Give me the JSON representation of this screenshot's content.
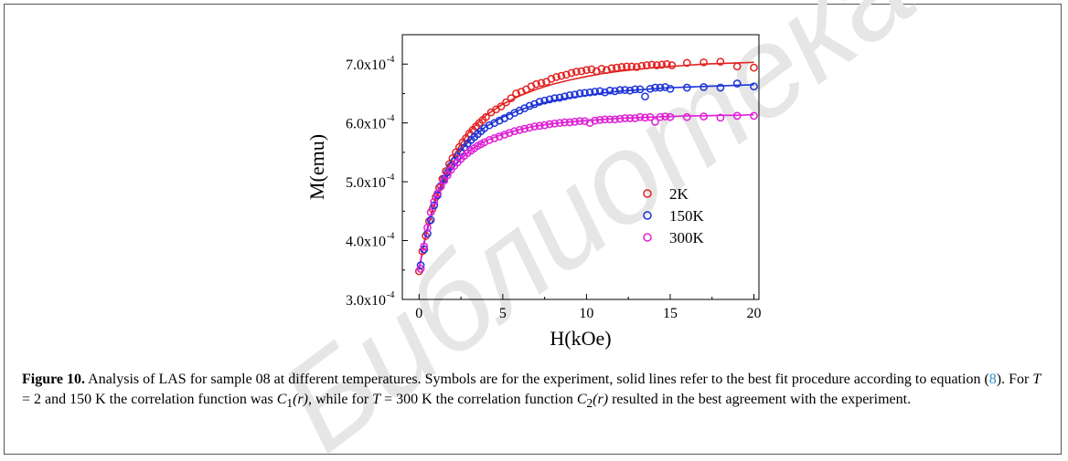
{
  "chart_data": {
    "type": "scatter",
    "xlabel": "H(kOe)",
    "ylabel": "M(emu)",
    "xlim": [
      -1,
      20.3
    ],
    "ylim": [
      0.0003,
      0.00075
    ],
    "xticks": [
      "0",
      "5",
      "10",
      "15",
      "20"
    ],
    "yticks": [
      "3.0x10",
      "4.0x10",
      "5.0x10",
      "6.0x10",
      "7.0x10"
    ],
    "ytick_exponent": "-4",
    "legend_position": "center-right",
    "grid": false,
    "series": [
      {
        "name": "2K",
        "color": "#e32222",
        "points": [
          [
            0.0,
            3.48
          ],
          [
            0.2,
            3.82
          ],
          [
            0.4,
            4.08
          ],
          [
            0.6,
            4.33
          ],
          [
            0.8,
            4.54
          ],
          [
            1.0,
            4.74
          ],
          [
            1.2,
            4.9
          ],
          [
            1.4,
            5.05
          ],
          [
            1.6,
            5.18
          ],
          [
            1.8,
            5.3
          ],
          [
            2.0,
            5.4
          ],
          [
            2.2,
            5.5
          ],
          [
            2.4,
            5.59
          ],
          [
            2.6,
            5.67
          ],
          [
            2.8,
            5.74
          ],
          [
            3.0,
            5.82
          ],
          [
            3.2,
            5.88
          ],
          [
            3.4,
            5.94
          ],
          [
            3.6,
            6.0
          ],
          [
            3.8,
            6.05
          ],
          [
            4.0,
            6.1
          ],
          [
            4.3,
            6.18
          ],
          [
            4.6,
            6.23
          ],
          [
            4.9,
            6.28
          ],
          [
            5.2,
            6.35
          ],
          [
            5.5,
            6.42
          ],
          [
            5.8,
            6.5
          ],
          [
            6.1,
            6.53
          ],
          [
            6.4,
            6.57
          ],
          [
            6.7,
            6.62
          ],
          [
            7.0,
            6.66
          ],
          [
            7.3,
            6.68
          ],
          [
            7.6,
            6.7
          ],
          [
            7.9,
            6.75
          ],
          [
            8.2,
            6.78
          ],
          [
            8.5,
            6.8
          ],
          [
            8.8,
            6.82
          ],
          [
            9.1,
            6.85
          ],
          [
            9.4,
            6.87
          ],
          [
            9.7,
            6.88
          ],
          [
            10.0,
            6.9
          ],
          [
            10.3,
            6.91
          ],
          [
            10.6,
            6.88
          ],
          [
            10.9,
            6.92
          ],
          [
            11.2,
            6.9
          ],
          [
            11.5,
            6.93
          ],
          [
            11.8,
            6.94
          ],
          [
            12.1,
            6.95
          ],
          [
            12.4,
            6.96
          ],
          [
            12.7,
            6.96
          ],
          [
            13.0,
            6.95
          ],
          [
            13.3,
            6.97
          ],
          [
            13.6,
            6.98
          ],
          [
            13.9,
            6.99
          ],
          [
            14.2,
            6.98
          ],
          [
            14.5,
            6.99
          ],
          [
            14.8,
            7.0
          ],
          [
            15.1,
            6.98
          ],
          [
            16.0,
            7.02
          ],
          [
            17.0,
            7.03
          ],
          [
            18.0,
            7.04
          ],
          [
            19.0,
            6.96
          ],
          [
            20.0,
            6.94
          ]
        ]
      },
      {
        "name": "150K",
        "color": "#1c33d8",
        "points": [
          [
            0.1,
            3.58
          ],
          [
            0.3,
            3.85
          ],
          [
            0.5,
            4.12
          ],
          [
            0.7,
            4.35
          ],
          [
            0.9,
            4.6
          ],
          [
            1.1,
            4.77
          ],
          [
            1.3,
            4.93
          ],
          [
            1.5,
            5.05
          ],
          [
            1.7,
            5.16
          ],
          [
            1.9,
            5.27
          ],
          [
            2.1,
            5.35
          ],
          [
            2.3,
            5.43
          ],
          [
            2.5,
            5.51
          ],
          [
            2.7,
            5.58
          ],
          [
            2.9,
            5.65
          ],
          [
            3.1,
            5.71
          ],
          [
            3.3,
            5.76
          ],
          [
            3.5,
            5.81
          ],
          [
            3.7,
            5.86
          ],
          [
            3.9,
            5.91
          ],
          [
            4.2,
            5.96
          ],
          [
            4.5,
            6.0
          ],
          [
            4.8,
            6.04
          ],
          [
            5.1,
            6.08
          ],
          [
            5.4,
            6.12
          ],
          [
            5.7,
            6.17
          ],
          [
            6.0,
            6.21
          ],
          [
            6.3,
            6.25
          ],
          [
            6.6,
            6.29
          ],
          [
            6.9,
            6.32
          ],
          [
            7.2,
            6.36
          ],
          [
            7.5,
            6.38
          ],
          [
            7.8,
            6.4
          ],
          [
            8.1,
            6.42
          ],
          [
            8.4,
            6.43
          ],
          [
            8.7,
            6.45
          ],
          [
            9.0,
            6.47
          ],
          [
            9.3,
            6.48
          ],
          [
            9.6,
            6.5
          ],
          [
            9.9,
            6.51
          ],
          [
            10.2,
            6.52
          ],
          [
            10.5,
            6.53
          ],
          [
            10.8,
            6.54
          ],
          [
            11.1,
            6.52
          ],
          [
            11.4,
            6.55
          ],
          [
            11.7,
            6.54
          ],
          [
            12.0,
            6.56
          ],
          [
            12.3,
            6.56
          ],
          [
            12.6,
            6.55
          ],
          [
            12.9,
            6.57
          ],
          [
            13.2,
            6.57
          ],
          [
            13.5,
            6.45
          ],
          [
            13.8,
            6.58
          ],
          [
            14.1,
            6.6
          ],
          [
            14.4,
            6.6
          ],
          [
            14.7,
            6.61
          ],
          [
            15.0,
            6.58
          ],
          [
            16.0,
            6.6
          ],
          [
            17.0,
            6.61
          ],
          [
            18.0,
            6.6
          ],
          [
            19.0,
            6.67
          ],
          [
            20.0,
            6.62
          ]
        ]
      },
      {
        "name": "300K",
        "color": "#e020d6",
        "points": [
          [
            0.1,
            3.52
          ],
          [
            0.3,
            3.9
          ],
          [
            0.5,
            4.22
          ],
          [
            0.7,
            4.48
          ],
          [
            0.9,
            4.66
          ],
          [
            1.1,
            4.8
          ],
          [
            1.3,
            4.92
          ],
          [
            1.5,
            5.02
          ],
          [
            1.7,
            5.11
          ],
          [
            1.9,
            5.2
          ],
          [
            2.1,
            5.27
          ],
          [
            2.3,
            5.33
          ],
          [
            2.5,
            5.39
          ],
          [
            2.7,
            5.44
          ],
          [
            2.9,
            5.49
          ],
          [
            3.1,
            5.53
          ],
          [
            3.3,
            5.57
          ],
          [
            3.5,
            5.61
          ],
          [
            3.7,
            5.64
          ],
          [
            3.9,
            5.67
          ],
          [
            4.2,
            5.71
          ],
          [
            4.5,
            5.74
          ],
          [
            4.8,
            5.77
          ],
          [
            5.1,
            5.8
          ],
          [
            5.4,
            5.83
          ],
          [
            5.7,
            5.86
          ],
          [
            6.0,
            5.88
          ],
          [
            6.3,
            5.9
          ],
          [
            6.6,
            5.92
          ],
          [
            6.9,
            5.94
          ],
          [
            7.2,
            5.95
          ],
          [
            7.5,
            5.96
          ],
          [
            7.8,
            5.98
          ],
          [
            8.1,
            5.99
          ],
          [
            8.4,
            6.0
          ],
          [
            8.7,
            6.01
          ],
          [
            9.0,
            6.01
          ],
          [
            9.3,
            6.02
          ],
          [
            9.6,
            6.03
          ],
          [
            9.9,
            6.03
          ],
          [
            10.2,
            6.0
          ],
          [
            10.5,
            6.04
          ],
          [
            10.8,
            6.05
          ],
          [
            11.1,
            6.06
          ],
          [
            11.4,
            6.06
          ],
          [
            11.7,
            6.06
          ],
          [
            12.0,
            6.07
          ],
          [
            12.3,
            6.08
          ],
          [
            12.6,
            6.08
          ],
          [
            12.9,
            6.08
          ],
          [
            13.2,
            6.1
          ],
          [
            13.5,
            6.09
          ],
          [
            13.8,
            6.1
          ],
          [
            14.1,
            6.02
          ],
          [
            14.4,
            6.1
          ],
          [
            14.7,
            6.11
          ],
          [
            15.0,
            6.1
          ],
          [
            16.0,
            6.1
          ],
          [
            17.0,
            6.11
          ],
          [
            18.0,
            6.09
          ],
          [
            19.0,
            6.12
          ],
          [
            20.0,
            6.12
          ]
        ]
      }
    ],
    "fits": [
      {
        "name": "2K",
        "color": "#e32222",
        "points": [
          [
            0.0,
            3.52
          ],
          [
            0.3,
            3.95
          ],
          [
            0.6,
            4.32
          ],
          [
            1.0,
            4.72
          ],
          [
            1.5,
            5.1
          ],
          [
            2.0,
            5.4
          ],
          [
            2.5,
            5.65
          ],
          [
            3.0,
            5.85
          ],
          [
            3.5,
            6.0
          ],
          [
            4.0,
            6.13
          ],
          [
            5.0,
            6.32
          ],
          [
            6.0,
            6.46
          ],
          [
            7.0,
            6.57
          ],
          [
            8.0,
            6.66
          ],
          [
            9.0,
            6.73
          ],
          [
            10.0,
            6.79
          ],
          [
            11.0,
            6.84
          ],
          [
            12.0,
            6.88
          ],
          [
            13.0,
            6.91
          ],
          [
            14.0,
            6.94
          ],
          [
            15.0,
            6.96
          ],
          [
            16.0,
            6.98
          ],
          [
            17.0,
            7.0
          ],
          [
            18.0,
            7.01
          ],
          [
            19.0,
            7.02
          ],
          [
            20.0,
            7.03
          ]
        ]
      },
      {
        "name": "150K",
        "color": "#1c33d8",
        "points": [
          [
            0.0,
            3.52
          ],
          [
            0.3,
            3.95
          ],
          [
            0.6,
            4.3
          ],
          [
            1.0,
            4.7
          ],
          [
            1.5,
            5.05
          ],
          [
            2.0,
            5.32
          ],
          [
            2.5,
            5.53
          ],
          [
            3.0,
            5.7
          ],
          [
            3.5,
            5.83
          ],
          [
            4.0,
            5.94
          ],
          [
            5.0,
            6.1
          ],
          [
            6.0,
            6.22
          ],
          [
            7.0,
            6.31
          ],
          [
            8.0,
            6.38
          ],
          [
            9.0,
            6.43
          ],
          [
            10.0,
            6.47
          ],
          [
            11.0,
            6.51
          ],
          [
            12.0,
            6.54
          ],
          [
            13.0,
            6.56
          ],
          [
            14.0,
            6.58
          ],
          [
            15.0,
            6.6
          ],
          [
            16.0,
            6.61
          ],
          [
            17.0,
            6.62
          ],
          [
            18.0,
            6.63
          ],
          [
            19.0,
            6.64
          ],
          [
            20.0,
            6.65
          ]
        ]
      },
      {
        "name": "300K",
        "color": "#e020d6",
        "points": [
          [
            0.0,
            3.5
          ],
          [
            0.3,
            3.97
          ],
          [
            0.6,
            4.35
          ],
          [
            1.0,
            4.7
          ],
          [
            1.5,
            5.0
          ],
          [
            2.0,
            5.22
          ],
          [
            2.5,
            5.39
          ],
          [
            3.0,
            5.52
          ],
          [
            3.5,
            5.62
          ],
          [
            4.0,
            5.7
          ],
          [
            5.0,
            5.81
          ],
          [
            6.0,
            5.89
          ],
          [
            7.0,
            5.95
          ],
          [
            8.0,
            5.99
          ],
          [
            9.0,
            6.02
          ],
          [
            10.0,
            6.04
          ],
          [
            11.0,
            6.06
          ],
          [
            12.0,
            6.08
          ],
          [
            13.0,
            6.09
          ],
          [
            14.0,
            6.1
          ],
          [
            15.0,
            6.11
          ],
          [
            16.0,
            6.12
          ],
          [
            17.0,
            6.12
          ],
          [
            18.0,
            6.13
          ],
          [
            19.0,
            6.13
          ],
          [
            20.0,
            6.14
          ]
        ]
      }
    ],
    "y_unit_scale": 0.0001
  },
  "caption": {
    "label": "Figure 10.",
    "t1": " Analysis of LAS for sample 08 at different temperatures. Symbols are for the experiment, solid lines refer to the best fit procedure according to equation (",
    "ref": "8",
    "t2": "). For ",
    "T1": "T",
    "t3": " = 2 and 150 K the correlation function was ",
    "C1": "C",
    "C1sub": "1",
    "r1": "(r)",
    "t4": ", while for ",
    "T2": "T",
    "t5": " = 300 K the correlation function ",
    "C2": "C",
    "C2sub": "2",
    "r2": "(r)",
    "t6": " resulted in the best agreement with the experiment."
  },
  "watermark": {
    "text": "Библиотека БГУИР",
    "color": "#e6e6e6"
  }
}
